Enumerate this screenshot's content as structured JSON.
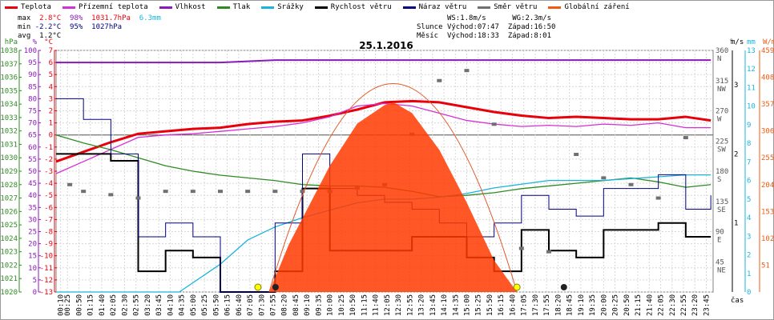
{
  "legend": [
    {
      "label": "Teplota",
      "color": "#e8000b"
    },
    {
      "label": "Přízemní teplota",
      "color": "#d62fd6"
    },
    {
      "label": "Vlhkost",
      "color": "#8a1ab8"
    },
    {
      "label": "Tlak",
      "color": "#2e8b22"
    },
    {
      "label": "Srážky",
      "color": "#18b4de"
    },
    {
      "label": "Rychlost větru",
      "color": "#000000"
    },
    {
      "label": "Náraz větru",
      "color": "#000080"
    },
    {
      "label": "Směr větru",
      "color": "#707070"
    },
    {
      "label": "Globální záření",
      "color": "#f05a12"
    }
  ],
  "stats": {
    "max_label": "max",
    "max_temp": "2.8°C",
    "max_hum": "98%",
    "max_press": "1031.7hPa",
    "rain": "6.3mm",
    "min_label": "min",
    "min_temp": "-2.2°C",
    "min_hum": "95%",
    "min_press": "1027hPa",
    "avg_label": "avg",
    "avg_temp": "1.2°C"
  },
  "ephemeris": {
    "ws": "WS:1.8m/s",
    "wg": "WG:2.3m/s",
    "sun_label": "Slunce",
    "sun_rise": "Východ:07:47",
    "sun_set": "Západ:16:50",
    "moon_label": "Měsíc",
    "moon_rise": "Východ:18:33",
    "moon_set": "Západ:8:01"
  },
  "chart_data": {
    "type": "line",
    "title": "25.1.2016",
    "xlabel": "čas",
    "x_ticks": [
      "00:10",
      "00:25",
      "00:50",
      "01:15",
      "01:40",
      "02:05",
      "02:30",
      "02:55",
      "03:20",
      "03:45",
      "04:10",
      "04:35",
      "05:00",
      "05:25",
      "05:50",
      "06:15",
      "06:40",
      "07:05",
      "07:30",
      "07:55",
      "08:20",
      "08:45",
      "09:10",
      "09:35",
      "10:00",
      "10:25",
      "10:50",
      "11:15",
      "11:40",
      "12:05",
      "12:30",
      "12:55",
      "13:20",
      "13:45",
      "14:10",
      "14:35",
      "15:00",
      "15:25",
      "15:50",
      "16:15",
      "16:40",
      "17:05",
      "17:30",
      "17:55",
      "18:20",
      "18:45",
      "19:10",
      "19:35",
      "20:00",
      "20:25",
      "20:50",
      "21:15",
      "21:40",
      "22:05",
      "22:30",
      "22:55",
      "23:20",
      "23:45"
    ],
    "axes": {
      "hpa": {
        "label": "hPa",
        "ticks": [
          "1038",
          "1037",
          "1036",
          "1035",
          "1034",
          "1033",
          "1032",
          "1031",
          "1030",
          "1029",
          "1028",
          "1027",
          "1026",
          "1025",
          "1024",
          "1023",
          "1022",
          "1021",
          "1020"
        ],
        "ylim": [
          1020,
          1038
        ]
      },
      "percent": {
        "label": "%",
        "ticks": [
          "100",
          "95",
          "90",
          "85",
          "80",
          "75",
          "70",
          "65",
          "60",
          "55",
          "50",
          "45",
          "40",
          "35",
          "30",
          "25",
          "20",
          "15",
          "10",
          "5",
          "0"
        ],
        "ylim": [
          0,
          100
        ]
      },
      "celsius": {
        "label": "°C",
        "ticks": [
          "7",
          "6",
          "5",
          "4",
          "3",
          "2",
          "1",
          "0",
          "-1",
          "-2",
          "-3",
          "-4",
          "-5",
          "-6",
          "-7",
          "-8",
          "-9",
          "-10",
          "-11",
          "-12",
          "-13"
        ],
        "ylim": [
          -13,
          7
        ]
      },
      "degrees": {
        "label": "°",
        "ticks": [
          "360",
          "315",
          "270",
          "225",
          "180",
          "135",
          "90",
          "45"
        ],
        "letters": [
          "N",
          "NW",
          "W",
          "SW",
          "S",
          "SE",
          "E",
          "NE"
        ],
        "ylim": [
          0,
          360
        ]
      },
      "ms": {
        "label": "m/s",
        "ticks": [
          "3",
          "2",
          "1"
        ],
        "ylim": [
          0,
          3.5
        ]
      },
      "mm": {
        "label": "mm",
        "ticks": [
          "13",
          "12",
          "11",
          "10",
          "9",
          "8",
          "7",
          "6",
          "5",
          "4",
          "3",
          "2",
          "1",
          "0"
        ],
        "ylim": [
          0,
          13
        ]
      },
      "wm": {
        "label": "W/m²",
        "ticks": [
          "459",
          "408",
          "357",
          "306",
          "255",
          "204",
          "153",
          "102",
          "51"
        ],
        "ylim": [
          0,
          459
        ]
      }
    },
    "series": [
      {
        "name": "Teplota",
        "unit": "°C",
        "x": [
          "00:00",
          "01:00",
          "02:00",
          "03:00",
          "04:00",
          "05:00",
          "06:00",
          "07:00",
          "08:00",
          "09:00",
          "10:00",
          "11:00",
          "12:00",
          "13:00",
          "14:00",
          "15:00",
          "16:00",
          "17:00",
          "18:00",
          "19:00",
          "20:00",
          "21:00",
          "22:00",
          "23:00",
          "23:55"
        ],
        "values": [
          -2.2,
          -1.4,
          -0.6,
          0.1,
          0.3,
          0.5,
          0.6,
          0.9,
          1.1,
          1.2,
          1.6,
          2.1,
          2.7,
          2.8,
          2.7,
          2.3,
          1.9,
          1.6,
          1.4,
          1.5,
          1.4,
          1.3,
          1.3,
          1.5,
          1.2
        ]
      },
      {
        "name": "Přízemní teplota",
        "unit": "°C",
        "x": [
          "00:00",
          "01:00",
          "02:00",
          "03:00",
          "04:00",
          "05:00",
          "06:00",
          "07:00",
          "08:00",
          "09:00",
          "10:00",
          "11:00",
          "12:00",
          "13:00",
          "14:00",
          "15:00",
          "16:00",
          "17:00",
          "18:00",
          "19:00",
          "20:00",
          "21:00",
          "22:00",
          "23:00",
          "23:55"
        ],
        "values": [
          -3.2,
          -2.2,
          -1.2,
          -0.2,
          0.0,
          0.1,
          0.3,
          0.5,
          0.7,
          1.0,
          1.5,
          2.4,
          2.6,
          2.4,
          1.8,
          1.2,
          0.9,
          0.7,
          0.8,
          0.7,
          0.9,
          0.8,
          1.0,
          0.6,
          0.6
        ]
      },
      {
        "name": "Vlhkost",
        "unit": "%",
        "x": [
          "00:00",
          "02:00",
          "04:00",
          "06:00",
          "08:00",
          "10:00",
          "12:00",
          "14:00",
          "16:00",
          "18:00",
          "20:00",
          "22:00",
          "23:55"
        ],
        "values": [
          95,
          95,
          95,
          95,
          96,
          96,
          96,
          96,
          96,
          96,
          96,
          96,
          96
        ]
      },
      {
        "name": "Tlak",
        "unit": "hPa",
        "x": [
          "00:00",
          "01:00",
          "02:00",
          "03:00",
          "04:00",
          "05:00",
          "06:00",
          "07:00",
          "08:00",
          "09:00",
          "10:00",
          "11:00",
          "12:00",
          "13:00",
          "14:00",
          "15:00",
          "16:00",
          "17:00",
          "18:00",
          "19:00",
          "20:00",
          "21:00",
          "22:00",
          "23:00",
          "23:55"
        ],
        "values": [
          1031.7,
          1031.1,
          1030.6,
          1030.0,
          1029.4,
          1029.0,
          1028.7,
          1028.5,
          1028.3,
          1028.0,
          1027.9,
          1027.9,
          1027.8,
          1027.5,
          1027.1,
          1027.2,
          1027.4,
          1027.7,
          1027.9,
          1028.1,
          1028.3,
          1028.5,
          1028.2,
          1027.8,
          1028.0
        ]
      },
      {
        "name": "Srážky",
        "unit": "mm",
        "x": [
          "00:00",
          "04:30",
          "05:00",
          "06:00",
          "07:00",
          "08:00",
          "09:00",
          "10:00",
          "11:00",
          "12:00",
          "13:00",
          "14:00",
          "15:00",
          "16:00",
          "17:00",
          "18:00",
          "19:00",
          "20:00",
          "21:00",
          "22:00",
          "23:00",
          "23:55"
        ],
        "values": [
          0,
          0,
          0.5,
          1.5,
          2.8,
          3.5,
          4.0,
          4.4,
          4.8,
          5.0,
          5.0,
          5.1,
          5.3,
          5.6,
          5.8,
          6.0,
          6.0,
          6.0,
          6.1,
          6.2,
          6.3,
          6.3
        ]
      },
      {
        "name": "Rychlost větru",
        "unit": "m/s",
        "x": [
          "00:00",
          "01:00",
          "02:00",
          "03:00",
          "04:00",
          "05:00",
          "06:00",
          "07:00",
          "08:00",
          "09:00",
          "10:00",
          "11:00",
          "12:00",
          "13:00",
          "14:00",
          "15:00",
          "16:00",
          "17:00",
          "18:00",
          "19:00",
          "20:00",
          "21:00",
          "22:00",
          "23:00",
          "23:55"
        ],
        "values": [
          2.0,
          2.0,
          1.9,
          0.3,
          0.6,
          0.5,
          0,
          0,
          0.3,
          1.5,
          0.6,
          0.6,
          0.6,
          0.8,
          0.8,
          0.5,
          0.3,
          0.9,
          0.6,
          0.5,
          0.9,
          0.9,
          1.0,
          0.8,
          0.8
        ]
      },
      {
        "name": "Náraz větru",
        "unit": "m/s",
        "x": [
          "00:00",
          "01:00",
          "02:00",
          "03:00",
          "04:00",
          "05:00",
          "06:00",
          "07:00",
          "08:00",
          "09:00",
          "10:00",
          "11:00",
          "12:00",
          "13:00",
          "14:00",
          "15:00",
          "16:00",
          "17:00",
          "18:00",
          "19:00",
          "20:00",
          "21:00",
          "22:00",
          "23:00",
          "23:55"
        ],
        "values": [
          2.8,
          2.5,
          2.0,
          0.8,
          1.0,
          0.8,
          0,
          0,
          1.0,
          2.0,
          1.5,
          1.4,
          1.3,
          1.2,
          1.0,
          0.8,
          1.0,
          1.4,
          1.2,
          1.1,
          1.5,
          1.5,
          1.7,
          1.2,
          1.4
        ]
      },
      {
        "name": "Směr větru",
        "unit": "°",
        "x": [
          "00:30",
          "01:00",
          "02:00",
          "03:00",
          "04:00",
          "05:00",
          "06:00",
          "07:00",
          "08:00",
          "09:00",
          "10:00",
          "11:00",
          "12:00",
          "13:00",
          "14:00",
          "15:00",
          "16:00",
          "17:00",
          "18:00",
          "19:00",
          "20:00",
          "21:00",
          "22:00",
          "23:00"
        ],
        "values": [
          160,
          150,
          145,
          140,
          150,
          150,
          150,
          150,
          150,
          150,
          150,
          155,
          160,
          235,
          315,
          330,
          250,
          65,
          60,
          205,
          170,
          160,
          140,
          230
        ]
      },
      {
        "name": "Globální záření",
        "unit": "W/m²",
        "x": [
          "07:47",
          "08:30",
          "09:00",
          "10:00",
          "11:00",
          "12:00",
          "12:20",
          "13:00",
          "14:00",
          "15:00",
          "16:00",
          "16:50"
        ],
        "values": [
          0,
          90,
          140,
          240,
          320,
          355,
          360,
          340,
          270,
          170,
          60,
          0
        ]
      }
    ]
  }
}
